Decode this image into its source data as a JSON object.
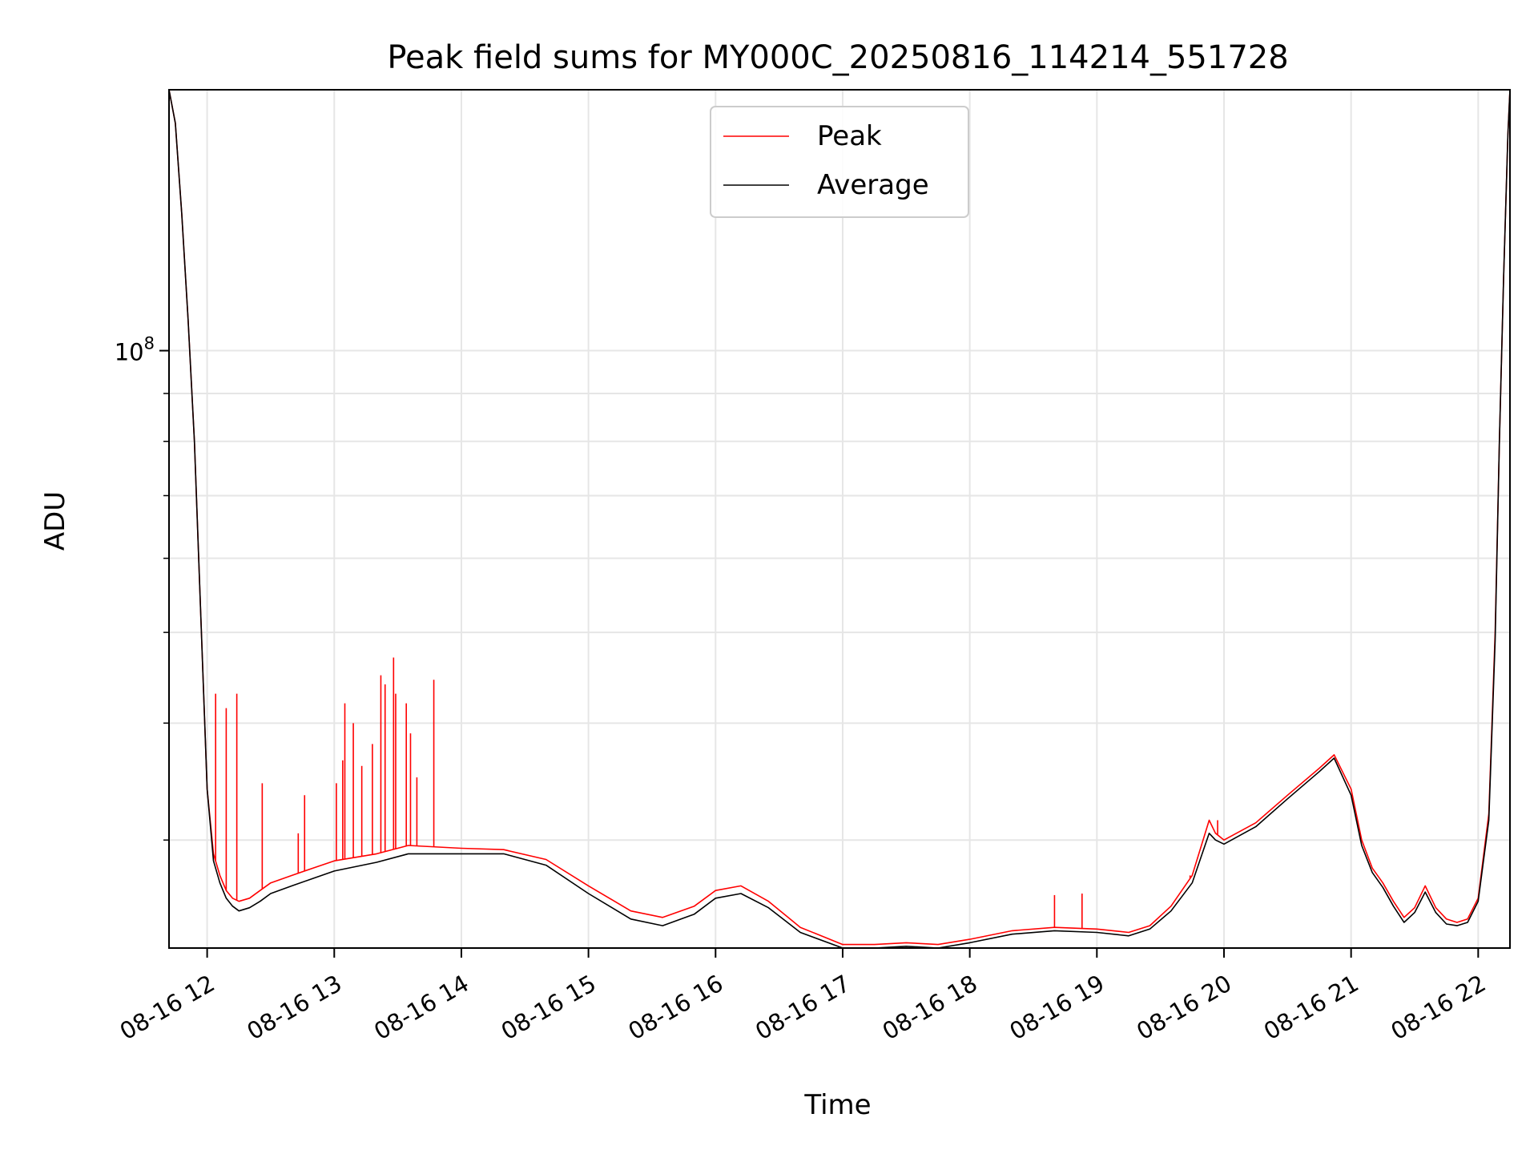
{
  "chart_data": {
    "type": "line",
    "title": "Peak field sums for MY000C_20250816_114214_551728",
    "xlabel": "Time",
    "ylabel": "ADU",
    "yscale": "log",
    "ylim": [
      23000000,
      190000000
    ],
    "xlim": [
      "2025-08-16 11:42",
      "2025-08-16 22:15"
    ],
    "grid": true,
    "legend_position": "top-center",
    "x_ticks": [
      "2025-08-16 12:00",
      "2025-08-16 13:00",
      "2025-08-16 14:00",
      "2025-08-16 15:00",
      "2025-08-16 16:00",
      "2025-08-16 17:00",
      "2025-08-16 18:00",
      "2025-08-16 19:00",
      "2025-08-16 20:00",
      "2025-08-16 21:00",
      "2025-08-16 22:00"
    ],
    "x_tick_labels": [
      "08-16 12",
      "08-16 13",
      "08-16 14",
      "08-16 15",
      "08-16 16",
      "08-16 17",
      "08-16 18",
      "08-16 19",
      "08-16 20",
      "08-16 21",
      "08-16 22"
    ],
    "y_ticks": [
      100000000
    ],
    "y_tick_labels": [
      {
        "base": "10",
        "exp": "8"
      }
    ],
    "y_minor_ticks": [
      30000000,
      40000000,
      50000000,
      60000000,
      70000000,
      80000000,
      90000000
    ],
    "x": [
      "2025-08-16 11:42",
      "2025-08-16 11:45",
      "2025-08-16 11:48",
      "2025-08-16 11:51",
      "2025-08-16 11:54",
      "2025-08-16 11:57",
      "2025-08-16 12:00",
      "2025-08-16 12:03",
      "2025-08-16 12:06",
      "2025-08-16 12:09",
      "2025-08-16 12:12",
      "2025-08-16 12:15",
      "2025-08-16 12:20",
      "2025-08-16 12:25",
      "2025-08-16 12:30",
      "2025-08-16 12:40",
      "2025-08-16 12:50",
      "2025-08-16 13:00",
      "2025-08-16 13:20",
      "2025-08-16 13:35",
      "2025-08-16 14:00",
      "2025-08-16 14:20",
      "2025-08-16 14:40",
      "2025-08-16 15:00",
      "2025-08-16 15:20",
      "2025-08-16 15:35",
      "2025-08-16 15:50",
      "2025-08-16 16:00",
      "2025-08-16 16:12",
      "2025-08-16 16:25",
      "2025-08-16 16:40",
      "2025-08-16 17:00",
      "2025-08-16 17:15",
      "2025-08-16 17:30",
      "2025-08-16 17:45",
      "2025-08-16 18:00",
      "2025-08-16 18:20",
      "2025-08-16 18:40",
      "2025-08-16 19:00",
      "2025-08-16 19:15",
      "2025-08-16 19:25",
      "2025-08-16 19:35",
      "2025-08-16 19:45",
      "2025-08-16 19:53",
      "2025-08-16 19:56",
      "2025-08-16 20:00",
      "2025-08-16 20:15",
      "2025-08-16 20:30",
      "2025-08-16 20:45",
      "2025-08-16 20:52",
      "2025-08-16 21:00",
      "2025-08-16 21:05",
      "2025-08-16 21:10",
      "2025-08-16 21:15",
      "2025-08-16 21:20",
      "2025-08-16 21:25",
      "2025-08-16 21:30",
      "2025-08-16 21:35",
      "2025-08-16 21:40",
      "2025-08-16 21:45",
      "2025-08-16 21:50",
      "2025-08-16 21:55",
      "2025-08-16 22:00",
      "2025-08-16 22:05",
      "2025-08-16 22:08",
      "2025-08-16 22:10",
      "2025-08-16 22:12",
      "2025-08-16 22:14",
      "2025-08-16 22:15"
    ],
    "series": [
      {
        "name": "Peak",
        "color": "#ff0000",
        "values": [
          190000000,
          175000000,
          140000000,
          108000000,
          80000000,
          52000000,
          34000000,
          29000000,
          27500000,
          26500000,
          26000000,
          25800000,
          26000000,
          26500000,
          27000000,
          27500000,
          28000000,
          28500000,
          29000000,
          29600000,
          29400000,
          29300000,
          28600000,
          26800000,
          25200000,
          24800000,
          25500000,
          26500000,
          26800000,
          25800000,
          24200000,
          23200000,
          23200000,
          23300000,
          23200000,
          23500000,
          24000000,
          24200000,
          24100000,
          23900000,
          24300000,
          25500000,
          27500000,
          31500000,
          30500000,
          30000000,
          31300000,
          33500000,
          35800000,
          37000000,
          34000000,
          30000000,
          28000000,
          27000000,
          25800000,
          24800000,
          25400000,
          26800000,
          25400000,
          24700000,
          24500000,
          24700000,
          26000000,
          32000000,
          50000000,
          80000000,
          120000000,
          170000000,
          190000000
        ]
      },
      {
        "name": "Average",
        "color": "#000000",
        "values": [
          190000000,
          175000000,
          140000000,
          108000000,
          80000000,
          52000000,
          34000000,
          28500000,
          27000000,
          26000000,
          25500000,
          25200000,
          25400000,
          25800000,
          26300000,
          26800000,
          27300000,
          27800000,
          28400000,
          29000000,
          29000000,
          29000000,
          28200000,
          26300000,
          24700000,
          24300000,
          25000000,
          26000000,
          26300000,
          25400000,
          23900000,
          23000000,
          23000000,
          23100000,
          23000000,
          23300000,
          23800000,
          24000000,
          23900000,
          23700000,
          24100000,
          25200000,
          27000000,
          30500000,
          30000000,
          29700000,
          31000000,
          33200000,
          35500000,
          36700000,
          33500000,
          29600000,
          27700000,
          26700000,
          25500000,
          24500000,
          25100000,
          26400000,
          25100000,
          24400000,
          24300000,
          24500000,
          25800000,
          31500000,
          49000000,
          80000000,
          120000000,
          170000000,
          190000000
        ]
      }
    ],
    "peak_spikes": [
      {
        "x": "2025-08-16 12:04",
        "y": 43000000
      },
      {
        "x": "2025-08-16 12:09",
        "y": 41500000
      },
      {
        "x": "2025-08-16 12:14",
        "y": 43000000
      },
      {
        "x": "2025-08-16 12:26",
        "y": 34500000
      },
      {
        "x": "2025-08-16 12:43",
        "y": 30500000
      },
      {
        "x": "2025-08-16 12:46",
        "y": 33500000
      },
      {
        "x": "2025-08-16 13:01",
        "y": 34500000
      },
      {
        "x": "2025-08-16 13:04",
        "y": 36500000
      },
      {
        "x": "2025-08-16 13:05",
        "y": 42000000
      },
      {
        "x": "2025-08-16 13:09",
        "y": 40000000
      },
      {
        "x": "2025-08-16 13:13",
        "y": 36000000
      },
      {
        "x": "2025-08-16 13:18",
        "y": 38000000
      },
      {
        "x": "2025-08-16 13:22",
        "y": 45000000
      },
      {
        "x": "2025-08-16 13:24",
        "y": 44000000
      },
      {
        "x": "2025-08-16 13:28",
        "y": 47000000
      },
      {
        "x": "2025-08-16 13:29",
        "y": 43000000
      },
      {
        "x": "2025-08-16 13:34",
        "y": 42000000
      },
      {
        "x": "2025-08-16 13:36",
        "y": 39000000
      },
      {
        "x": "2025-08-16 13:39",
        "y": 35000000
      },
      {
        "x": "2025-08-16 13:47",
        "y": 44500000
      },
      {
        "x": "2025-08-16 19:57",
        "y": 31500000
      },
      {
        "x": "2025-08-16 19:44",
        "y": 27500000
      },
      {
        "x": "2025-08-16 18:40",
        "y": 26200000
      },
      {
        "x": "2025-08-16 18:53",
        "y": 26300000
      }
    ]
  }
}
